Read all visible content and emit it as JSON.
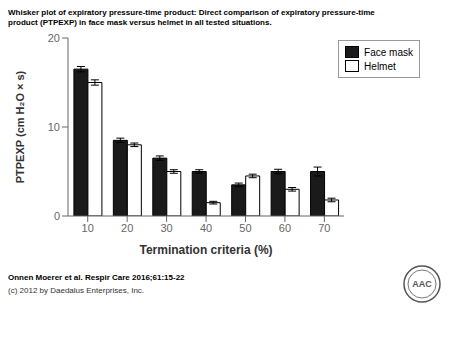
{
  "chart_data": {
    "type": "bar",
    "title": "Whisker plot of expiratory pressure-time product: Direct comparison of expiratory pressure-time",
    "subtitle": "product (PTPEXP) in face mask versus helmet in all tested situations.",
    "xlabel": "Termination criteria (%)",
    "ylabel": "PTPEXP (cm H₂O × s)",
    "categories": [
      "10",
      "20",
      "30",
      "40",
      "50",
      "60",
      "70"
    ],
    "series": [
      {
        "name": "Face mask",
        "color": "#1a1a1a",
        "values": [
          16.5,
          8.5,
          6.5,
          5.0,
          3.5,
          5.0,
          5.0
        ],
        "errors": [
          0.3,
          0.25,
          0.25,
          0.2,
          0.2,
          0.25,
          0.5
        ]
      },
      {
        "name": "Helmet",
        "color": "#ffffff",
        "values": [
          15.0,
          8.0,
          5.0,
          1.5,
          4.5,
          3.0,
          1.8
        ],
        "errors": [
          0.3,
          0.2,
          0.2,
          0.15,
          0.2,
          0.2,
          0.2
        ]
      }
    ],
    "ylim": [
      0,
      20
    ],
    "yticks": [
      0,
      10,
      20
    ],
    "grid": false,
    "legend": "upper right",
    "annotations": [
      "Onnen Moerer et al. Respir Care 2016;61:15-22",
      "(c) 2012 by Daedalus Enterprises, Inc.",
      "AAC"
    ]
  }
}
